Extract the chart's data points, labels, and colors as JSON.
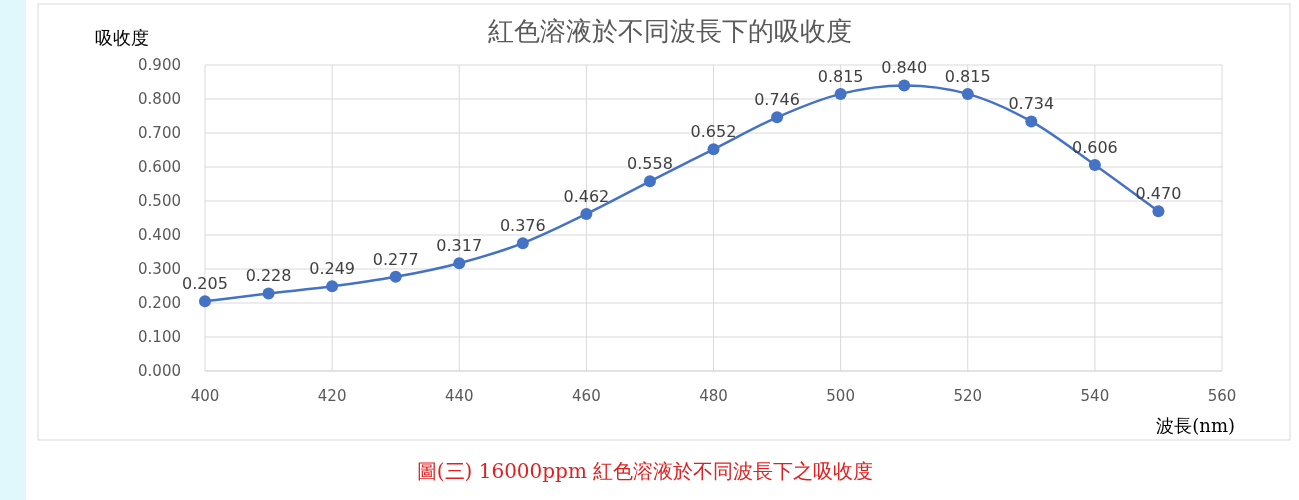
{
  "chart_data": {
    "type": "line",
    "title": "紅色溶液於不同波長下的吸收度",
    "xlabel": "波長(nm)",
    "ylabel": "吸收度",
    "x": [
      400,
      410,
      420,
      430,
      440,
      450,
      460,
      470,
      480,
      490,
      500,
      510,
      520,
      530,
      540,
      550
    ],
    "series": [
      {
        "color": "#4472c4",
        "values": [
          0.205,
          0.228,
          0.249,
          0.277,
          0.317,
          0.376,
          0.462,
          0.558,
          0.652,
          0.746,
          0.815,
          0.84,
          0.815,
          0.734,
          0.606,
          0.47
        ],
        "value_labels": [
          "0.205",
          "0.228",
          "0.249",
          "0.277",
          "0.317",
          "0.376",
          "0.462",
          "0.558",
          "0.652",
          "0.746",
          "0.815",
          "0.840",
          "0.815",
          "0.734",
          "0.606",
          "0.470"
        ]
      }
    ],
    "xlim": [
      400,
      560
    ],
    "xticks": [
      400,
      420,
      440,
      460,
      480,
      500,
      520,
      540,
      560
    ],
    "ylim": [
      0,
      0.9
    ],
    "yticks": [
      {
        "value": 0,
        "label": "0.000"
      },
      {
        "value": 0.1,
        "label": "0.100"
      },
      {
        "value": 0.2,
        "label": "0.200"
      },
      {
        "value": 0.3,
        "label": "0.300"
      },
      {
        "value": 0.4,
        "label": "0.400"
      },
      {
        "value": 0.5,
        "label": "0.500"
      },
      {
        "value": 0.6,
        "label": "0.600"
      },
      {
        "value": 0.7,
        "label": "0.700"
      },
      {
        "value": 0.8,
        "label": "0.800"
      },
      {
        "value": 0.9,
        "label": "0.900"
      }
    ],
    "grid": true,
    "marker": "circle",
    "line_style": "solid",
    "annotations": [
      "圖(三) 16000ppm 紅色溶液於不同波長下之吸收度"
    ]
  }
}
